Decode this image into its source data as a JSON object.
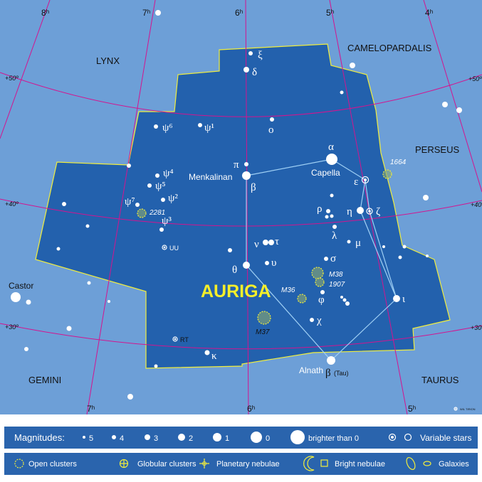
{
  "map": {
    "title": "AURIGA",
    "constellations": [
      "LYNX",
      "CAMELOPARDALIS",
      "PERSEUS",
      "GEMINI",
      "TAURUS"
    ],
    "ra_labels": [
      "8ʰ",
      "7ʰ",
      "6ʰ",
      "5ʰ",
      "4ʰ",
      "7ʰ",
      "6ʰ",
      "5ʰ"
    ],
    "dec_labels": [
      "+50º",
      "+50º",
      "+40º",
      "+40º",
      "+30º",
      "+30º"
    ],
    "star_names": [
      "Capella",
      "Menkalinan",
      "Alnath",
      "Castor"
    ],
    "greek": [
      "α",
      "β",
      "θ",
      "ι",
      "ε",
      "η",
      "ζ",
      "δ",
      "ξ",
      "ο",
      "π",
      "ψ⁶",
      "ψ¹",
      "ψ⁴",
      "ψ⁵",
      "ψ²",
      "ψ⁷",
      "ψ³",
      "ρ",
      "λ",
      "μ",
      "ν",
      "τ",
      "υ",
      "σ",
      "φ",
      "χ",
      "κ",
      "β"
    ],
    "alnath_note": "(Tau)",
    "clusters": [
      "1664",
      "2281",
      "M38",
      "1907",
      "M36",
      "M37"
    ],
    "variables": [
      "UU",
      "RT"
    ],
    "credit": "WIL TIRION"
  },
  "legend": {
    "magnitudes_label": "Magnitudes:",
    "magnitudes": [
      "5",
      "4",
      "3",
      "2",
      "1",
      "0",
      "brighter than 0"
    ],
    "variable_stars": "Variable stars",
    "objects": [
      "Open clusters",
      "Globular clusters",
      "Planetary nebulae",
      "Bright nebulae",
      "Galaxies"
    ]
  }
}
